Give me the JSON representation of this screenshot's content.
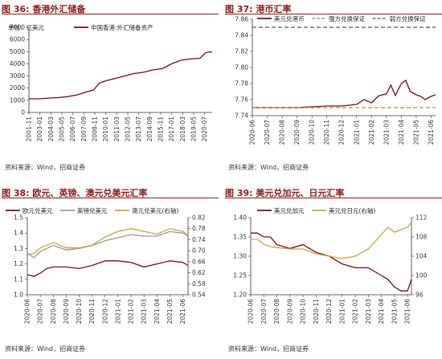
{
  "panels": [
    {
      "title": "图 36: 香港外汇储备",
      "source": "资料来源：Wind，招商证券",
      "unit": "单位：亿美元"
    },
    {
      "title": "图 37: 港币汇率",
      "source": "资料来源：Wind，招商证券"
    },
    {
      "title": "图 38: 欧元、英镑、澳元兑美元汇率",
      "source": "资料来源：Wind，招商证券"
    },
    {
      "title": "图 39: 美元兑加元、日元汇率",
      "source": "资料来源：Wind，招商证券"
    }
  ],
  "chart_data": [
    {
      "type": "line",
      "title": "香港外汇储备",
      "ylabel": "单位：亿美元",
      "ylim": [
        0,
        7000
      ],
      "yticks": [
        0,
        1000,
        2000,
        3000,
        4000,
        5000,
        6000,
        7000
      ],
      "xticks": [
        "2001-11",
        "2003-01",
        "2004-03",
        "2005-05",
        "2006-07",
        "2007-09",
        "2008-11",
        "2010-01",
        "2011-03",
        "2012-05",
        "2013-07",
        "2014-09",
        "2015-11",
        "2017-01",
        "2018-03",
        "2019-05",
        "2020-07"
      ],
      "series": [
        {
          "name": "中国香港:外汇储备资产",
          "color": "#6b0f1a",
          "x": [
            2001.83,
            2003.0,
            2004.0,
            2005.0,
            2006.0,
            2007.0,
            2008.0,
            2008.7,
            2009.3,
            2010.0,
            2011.0,
            2012.0,
            2013.0,
            2014.0,
            2015.0,
            2016.0,
            2017.0,
            2018.0,
            2019.0,
            2020.0,
            2020.6,
            2021.0,
            2021.3
          ],
          "values": [
            1120,
            1120,
            1180,
            1220,
            1310,
            1450,
            1700,
            1850,
            2400,
            2600,
            2800,
            3000,
            3200,
            3300,
            3500,
            3600,
            4000,
            4300,
            4400,
            4450,
            4900,
            4980,
            4960
          ]
        }
      ]
    },
    {
      "type": "line",
      "title": "港币汇率",
      "ylim": [
        7.74,
        7.86
      ],
      "yticks": [
        7.74,
        7.76,
        7.78,
        7.8,
        7.82,
        7.84,
        7.86
      ],
      "xticks": [
        "2020-06",
        "2020-07",
        "2020-08",
        "2020-09",
        "2020-10",
        "2020-11",
        "2020-12",
        "2021-01",
        "2021-02",
        "2021-03",
        "2021-04",
        "2021-05",
        "2021-06"
      ],
      "series": [
        {
          "name": "美元兑港币",
          "color": "#6b0f1a",
          "x": [
            0,
            1,
            2,
            3,
            4,
            5,
            6,
            7,
            7.5,
            8,
            8.5,
            9,
            9.3,
            9.6,
            10,
            10.3,
            10.6,
            11,
            11.3,
            11.6,
            12,
            12.3
          ],
          "values": [
            7.75,
            7.75,
            7.75,
            7.75,
            7.751,
            7.752,
            7.752,
            7.754,
            7.76,
            7.756,
            7.765,
            7.767,
            7.778,
            7.765,
            7.78,
            7.784,
            7.77,
            7.766,
            7.764,
            7.76,
            7.764,
            7.766
          ]
        },
        {
          "name": "强方兑换保证",
          "color": "#c08a2a",
          "dashed": true,
          "x": [
            0,
            12.3
          ],
          "values": [
            7.75,
            7.75
          ]
        },
        {
          "name": "弱方兑换保证",
          "color": "#555555",
          "dashed": true,
          "x": [
            0,
            12.3
          ],
          "values": [
            7.85,
            7.85
          ]
        }
      ]
    },
    {
      "type": "line",
      "title": "欧元、英镑、澳元兑美元汇率",
      "ylim": [
        1.0,
        1.5
      ],
      "yticks": [
        1.0,
        1.1,
        1.2,
        1.3,
        1.4,
        1.5
      ],
      "y2lim": [
        0.54,
        0.82
      ],
      "y2ticks": [
        0.54,
        0.58,
        0.62,
        0.66,
        0.7,
        0.74,
        0.78,
        0.82
      ],
      "y2label": "右轴",
      "xticks": [
        "2020-06",
        "2020-07",
        "2020-08",
        "2020-09",
        "2020-10",
        "2020-11",
        "2020-12",
        "2021-01",
        "2021-02",
        "2021-03",
        "2021-04",
        "2021-05",
        "2021-06"
      ],
      "series": [
        {
          "name": "欧元兑美元",
          "color": "#6b0f1a",
          "x": [
            0,
            0.5,
            1,
            1.5,
            2,
            3,
            4,
            5,
            6,
            7,
            8,
            9,
            10,
            11,
            12,
            12.4
          ],
          "values": [
            1.13,
            1.12,
            1.14,
            1.17,
            1.18,
            1.18,
            1.17,
            1.19,
            1.22,
            1.22,
            1.21,
            1.18,
            1.2,
            1.22,
            1.21,
            1.19
          ]
        },
        {
          "name": "英镑兑美元",
          "color": "#999999",
          "x": [
            0,
            0.5,
            1,
            1.5,
            2,
            3,
            4,
            5,
            6,
            7,
            8,
            9,
            10,
            11,
            12,
            12.4
          ],
          "values": [
            1.27,
            1.24,
            1.28,
            1.3,
            1.32,
            1.29,
            1.3,
            1.32,
            1.35,
            1.37,
            1.39,
            1.38,
            1.38,
            1.41,
            1.4,
            1.38
          ]
        },
        {
          "name": "澳元兑美元(右轴)",
          "color": "#c9a43a",
          "axis": "right",
          "x": [
            0,
            0.5,
            1,
            1.5,
            2,
            3,
            4,
            5,
            6,
            7,
            8,
            9,
            10,
            11,
            12,
            12.4
          ],
          "values": [
            0.685,
            0.69,
            0.71,
            0.72,
            0.73,
            0.71,
            0.71,
            0.72,
            0.75,
            0.77,
            0.78,
            0.77,
            0.76,
            0.78,
            0.77,
            0.755
          ]
        }
      ]
    },
    {
      "type": "line",
      "title": "美元兑加元、日元汇率",
      "ylim": [
        1.2,
        1.4
      ],
      "yticks": [
        1.2,
        1.25,
        1.3,
        1.35,
        1.4
      ],
      "y2lim": [
        96,
        112
      ],
      "y2ticks": [
        96,
        100,
        104,
        108,
        112
      ],
      "y2label": "右轴",
      "xticks": [
        "2020-06",
        "2020-07",
        "2020-08",
        "2020-09",
        "2020-10",
        "2020-11",
        "2020-12",
        "2021-01",
        "2021-02",
        "2021-03",
        "2021-04",
        "2021-05",
        "2021-06"
      ],
      "series": [
        {
          "name": "美元兑加元",
          "color": "#6b0f1a",
          "x": [
            0,
            0.5,
            1,
            1.5,
            2,
            3,
            4,
            5,
            6,
            7,
            8,
            9,
            10,
            10.5,
            11,
            11.5,
            12,
            12.3
          ],
          "values": [
            1.36,
            1.36,
            1.35,
            1.35,
            1.33,
            1.32,
            1.33,
            1.31,
            1.3,
            1.28,
            1.27,
            1.27,
            1.25,
            1.24,
            1.22,
            1.21,
            1.21,
            1.24
          ]
        },
        {
          "name": "美元兑日元(右轴)",
          "color": "#c9a43a",
          "axis": "right",
          "x": [
            0,
            0.5,
            1,
            1.5,
            2,
            3,
            4,
            5,
            6,
            7,
            8,
            9,
            10,
            10.5,
            11,
            11.5,
            12,
            12.3
          ],
          "values": [
            107.5,
            107.5,
            106.5,
            106.0,
            105.8,
            105.5,
            105.5,
            104.5,
            104.0,
            103.5,
            104.0,
            105.5,
            108.5,
            110.0,
            109.0,
            109.5,
            110.0,
            111.0
          ]
        }
      ]
    }
  ]
}
